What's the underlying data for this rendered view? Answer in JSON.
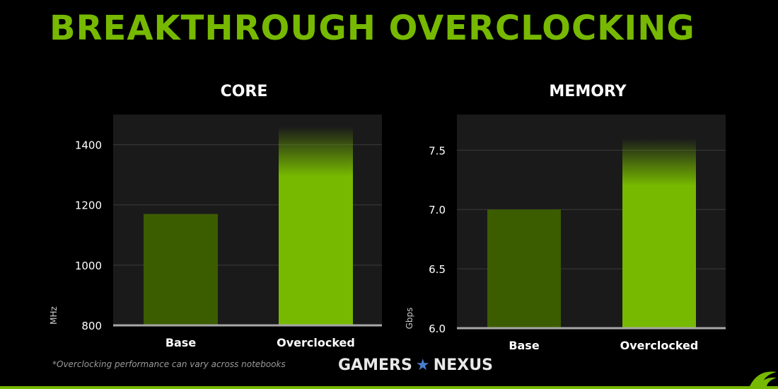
{
  "slide": {
    "title": "BREAKTHROUGH OVERCLOCKING",
    "footnote": "*Overclocking performance can vary across notebooks",
    "watermark_left": "GAMERS",
    "watermark_right": "NEXUS"
  },
  "colors": {
    "accent": "#76b900",
    "base_bar": "#3c5c00",
    "plot_bg": "#1a1a1a",
    "background": "#000000"
  },
  "chart_data": [
    {
      "type": "bar",
      "title": "CORE",
      "ylabel": "MHz",
      "xlabel": "",
      "categories": [
        "Base",
        "Overclocked"
      ],
      "values": [
        1170,
        1460
      ],
      "ylim": [
        800,
        1500
      ],
      "yticks": [
        800,
        1000,
        1200,
        1400
      ],
      "ytick_labels": [
        "800",
        "1000",
        "1200",
        "1400"
      ],
      "grid": true,
      "note": ""
    },
    {
      "type": "bar",
      "title": "MEMORY",
      "ylabel": "Gbps",
      "xlabel": "",
      "categories": [
        "Base",
        "Overclocked"
      ],
      "values": [
        7.0,
        7.6
      ],
      "ylim": [
        6.0,
        7.8
      ],
      "yticks": [
        6.0,
        6.5,
        7.0,
        7.5
      ],
      "ytick_labels": [
        "6.0",
        "6.5",
        "7.0",
        "7.5"
      ],
      "grid": true,
      "note": ""
    }
  ]
}
